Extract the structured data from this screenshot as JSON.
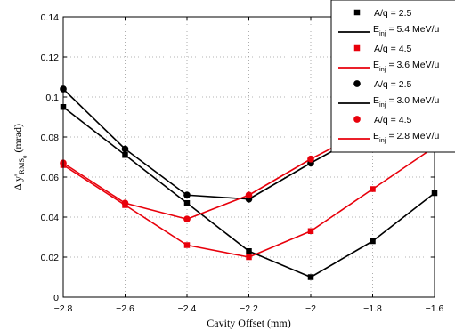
{
  "chart_data": {
    "type": "line",
    "title": "",
    "xlabel": "Cavity Offset (mm)",
    "ylabel": {
      "prefix": "Δ y'",
      "sub": "RMS",
      "subsub": "0",
      "suffix": " (mrad)"
    },
    "xlim": [
      -2.8,
      -1.6
    ],
    "ylim": [
      0,
      0.14
    ],
    "grid": true,
    "legend_position": "top-right",
    "xticks": [
      -2.8,
      -2.6,
      -2.4,
      -2.2,
      -2.0,
      -1.8,
      -1.6
    ],
    "xtick_labels": [
      "−2.8",
      "−2.6",
      "−2.4",
      "−2.2",
      "−2",
      "−1.8",
      "−1.6"
    ],
    "yticks": [
      0,
      0.02,
      0.04,
      0.06,
      0.08,
      0.1,
      0.12,
      0.14
    ],
    "ytick_labels": [
      "0",
      "0.02",
      "0.04",
      "0.06",
      "0.08",
      "0.1",
      "0.12",
      "0.14"
    ],
    "series": [
      {
        "name_line1": "A/q = 2.5",
        "name_line2_prefix": "E",
        "name_line2_sub": "inj",
        "name_line2_suffix": " = 5.4 MeV/u",
        "color": "#000000",
        "marker": "square",
        "x": [
          -2.8,
          -2.6,
          -2.4,
          -2.2,
          -2.0,
          -1.8,
          -1.6
        ],
        "y": [
          0.095,
          0.071,
          0.047,
          0.023,
          0.01,
          0.028,
          0.052
        ]
      },
      {
        "name_line1": "A/q = 4.5",
        "name_line2_prefix": "E",
        "name_line2_sub": "inj",
        "name_line2_suffix": " = 3.6 MeV/u",
        "color": "#e8000b",
        "marker": "square",
        "x": [
          -2.8,
          -2.6,
          -2.4,
          -2.2,
          -2.0,
          -1.8,
          -1.6
        ],
        "y": [
          0.066,
          0.046,
          0.026,
          0.02,
          0.033,
          0.054,
          0.075
        ]
      },
      {
        "name_line1": "A/q = 2.5",
        "name_line2_prefix": "E",
        "name_line2_sub": "inj",
        "name_line2_suffix": " = 3.0 MeV/u",
        "color": "#000000",
        "marker": "circle",
        "x": [
          -2.8,
          -2.6,
          -2.4,
          -2.2,
          -2.0,
          -1.8
        ],
        "y": [
          0.104,
          0.074,
          0.051,
          0.049,
          0.067,
          0.084
        ]
      },
      {
        "name_line1": "A/q = 4.5",
        "name_line2_prefix": "E",
        "name_line2_sub": "inj",
        "name_line2_suffix": " = 2.8 MeV/u",
        "color": "#e8000b",
        "marker": "circle",
        "x": [
          -2.8,
          -2.6,
          -2.4,
          -2.2,
          -2.0,
          -1.8
        ],
        "y": [
          0.067,
          0.047,
          0.039,
          0.051,
          0.069,
          0.085
        ]
      }
    ]
  }
}
